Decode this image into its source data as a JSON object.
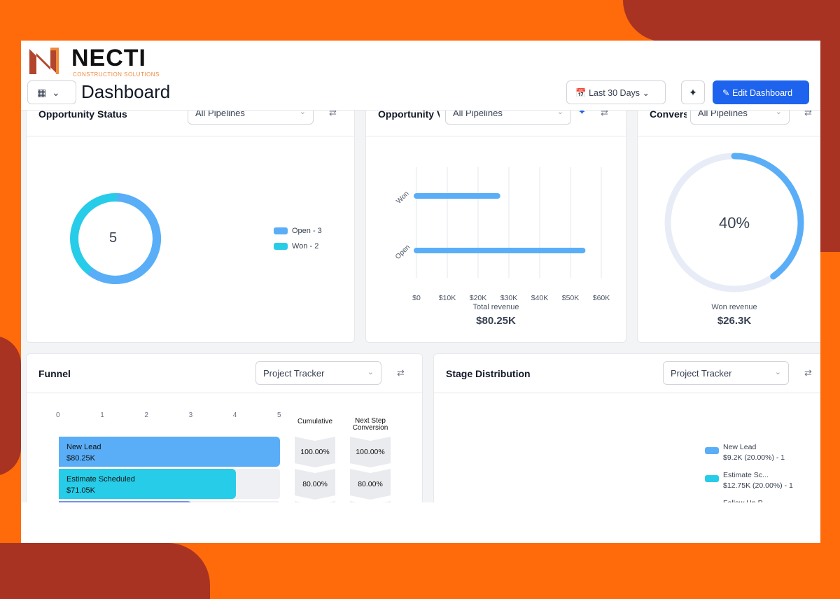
{
  "brand": {
    "name": "NECTI",
    "tagline": "CONSTRUCTION SOLUTIONS"
  },
  "header": {
    "title": "Dashboard",
    "date_range": "Last 30 Days",
    "edit_label": "Edit Dashboard"
  },
  "cards": {
    "opportunity_status": {
      "title": "Opportunity Status",
      "filter": "All Pipelines",
      "total": "5",
      "legend": [
        {
          "label": "Open - 3",
          "color": "#5aaef7",
          "value": 3
        },
        {
          "label": "Won - 2",
          "color": "#27cce8",
          "value": 2
        }
      ]
    },
    "opportunity_value": {
      "title": "Opportunity V",
      "filter": "All Pipelines",
      "categories": [
        "Won",
        "Open"
      ],
      "values": [
        26300,
        53950
      ],
      "ticks": [
        "$0",
        "$10K",
        "$20K",
        "$30K",
        "$40K",
        "$50K",
        "$60K"
      ],
      "footer_label": "Total revenue",
      "footer_value": "$80.25K"
    },
    "conversion": {
      "title": "Convers",
      "filter": "All Pipelines",
      "percent_label": "40%",
      "percent": 40,
      "footer_label": "Won revenue",
      "footer_value": "$26.3K"
    },
    "funnel": {
      "title": "Funnel",
      "filter": "Project Tracker",
      "ticks": [
        "0",
        "1",
        "2",
        "3",
        "4",
        "5"
      ],
      "col_cumulative": "Cumulative",
      "col_next": "Next Step Conversion",
      "rows": [
        {
          "name": "New Lead",
          "value": "$80.25K",
          "count": 5,
          "color": "#5aaef7",
          "cumulative": "100.00%",
          "next": "100.00%"
        },
        {
          "name": "Estimate Scheduled",
          "value": "$71.05K",
          "count": 4,
          "color": "#27cce8",
          "cumulative": "80.00%",
          "next": "80.00%"
        },
        {
          "name": "",
          "value": "",
          "count": 3,
          "color": "#7b8ef0",
          "cumulative": "",
          "next": ""
        }
      ]
    },
    "stage_distribution": {
      "title": "Stage Distribution",
      "filter": "Project Tracker",
      "legend": [
        {
          "name": "New Lead",
          "detail": "$9.2K (20.00%) - 1",
          "color": "#5aaef7"
        },
        {
          "name": "Estimate Sc...",
          "detail": "$12.75K (20.00%) - 1",
          "color": "#27cce8"
        },
        {
          "name": "Follow Up P...",
          "detail": "",
          "color": "#7b8ef0"
        }
      ]
    }
  }
}
